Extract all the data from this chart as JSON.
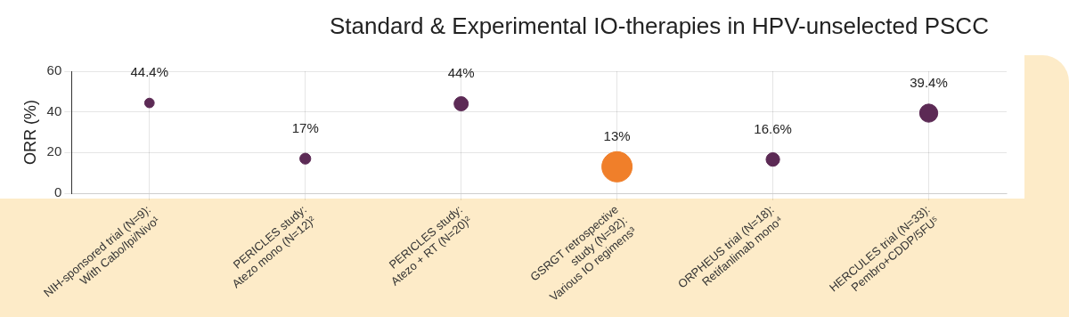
{
  "chart_data": {
    "type": "bubble",
    "title": "Standard & Experimental IO-therapies in HPV-unselected PSCC",
    "ylabel": "ORR (%)",
    "categories": [
      "NIH-sponsored trial (N=9):\nWith Cabo/Ipi/Nivo¹",
      "PERICLES study:\nAtezo mono (N=12)²",
      "PERICLES study:\nAtezo + RT (N=20)²",
      "GSRGT retrospective\nstudy (N=92):\nVarious IO regimens³",
      "ORPHEUS trial (N=18):\nRetifanlimab mono⁴",
      "HERCULES trial (N=33):\nPembro+CDDP/5FU⁵"
    ],
    "values": [
      44.4,
      17,
      44,
      13,
      16.6,
      39.4
    ],
    "sizes": [
      0.1,
      0.13,
      0.22,
      1,
      0.2,
      0.36
    ],
    "colors": [
      "#5c2a55",
      "#5c2a55",
      "#5c2a55",
      "#f07f2a",
      "#5c2a55",
      "#5c2a55"
    ],
    "value_labels": [
      "44.4%",
      "17%",
      "44%",
      "13%",
      "16.6%",
      "39.4%"
    ],
    "ylim": [
      0,
      60
    ],
    "yticks": [
      0,
      20,
      40,
      60
    ],
    "grid": true,
    "legend": false
  }
}
